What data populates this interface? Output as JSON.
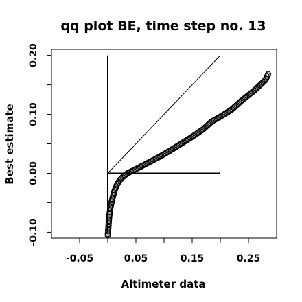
{
  "chart_data": {
    "type": "scatter",
    "title": "qq plot BE, time step no. 13",
    "xlabel": "Altimeter data",
    "ylabel": "Best estimate",
    "xlim": [
      -0.1,
      0.3
    ],
    "ylim": [
      -0.11,
      0.21
    ],
    "x_ticks": [
      -0.05,
      0.05,
      0.15,
      0.25
    ],
    "x_tick_labels": [
      "-0.05",
      "0.05",
      "0.15",
      "0.25"
    ],
    "y_ticks": [
      -0.1,
      0.0,
      0.1,
      0.2
    ],
    "y_tick_labels": [
      "-0.10",
      "0.00",
      "0.10",
      "0.20"
    ],
    "grid": false,
    "legend": "none",
    "reference_lines": [
      {
        "name": "diagonal",
        "x": [
          0.0,
          0.2
        ],
        "y": [
          0.0,
          0.2
        ]
      },
      {
        "name": "vertical",
        "x": [
          0.0,
          0.0
        ],
        "y": [
          -0.1,
          0.2
        ]
      },
      {
        "name": "horizontal",
        "x": [
          0.0,
          0.2
        ],
        "y": [
          0.0,
          0.0
        ]
      }
    ],
    "quantile_curve": [
      [
        0.0,
        -0.105
      ],
      [
        0.0006,
        -0.098
      ],
      [
        0.0012,
        -0.09
      ],
      [
        0.002,
        -0.08
      ],
      [
        0.003,
        -0.07
      ],
      [
        0.0045,
        -0.06
      ],
      [
        0.0065,
        -0.05
      ],
      [
        0.009,
        -0.04
      ],
      [
        0.012,
        -0.03
      ],
      [
        0.016,
        -0.02
      ],
      [
        0.021,
        -0.012
      ],
      [
        0.027,
        -0.006
      ],
      [
        0.035,
        0.0
      ],
      [
        0.05,
        0.007
      ],
      [
        0.07,
        0.017
      ],
      [
        0.09,
        0.027
      ],
      [
        0.11,
        0.038
      ],
      [
        0.13,
        0.05
      ],
      [
        0.15,
        0.062
      ],
      [
        0.17,
        0.075
      ],
      [
        0.185,
        0.088
      ],
      [
        0.2,
        0.096
      ],
      [
        0.21,
        0.102
      ],
      [
        0.22,
        0.108
      ],
      [
        0.24,
        0.125
      ],
      [
        0.26,
        0.14
      ],
      [
        0.28,
        0.158
      ],
      [
        0.285,
        0.168
      ]
    ],
    "num_points": 190
  }
}
